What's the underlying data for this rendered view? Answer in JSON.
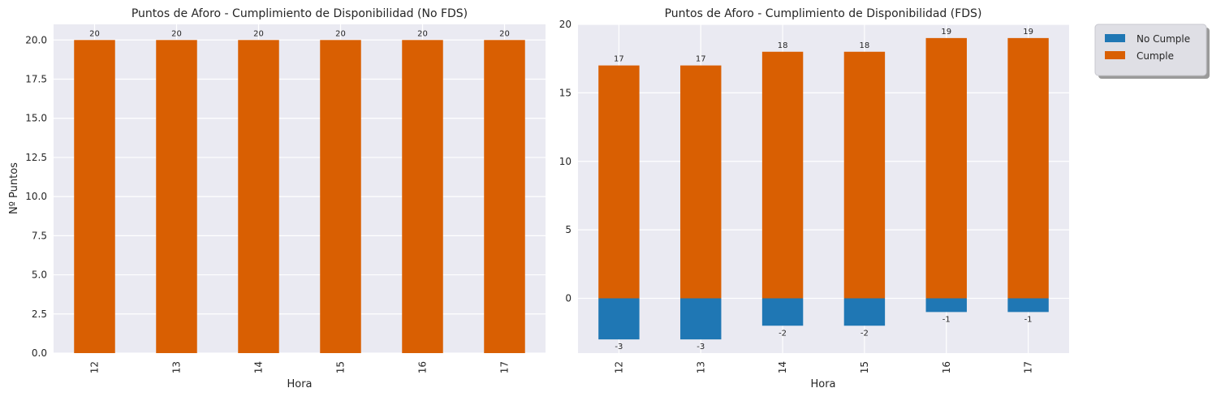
{
  "chart_data": [
    {
      "type": "bar",
      "stacked": false,
      "title": "Puntos de Aforo - Cumplimiento de Disponibilidad (No FDS)",
      "xlabel": "Hora",
      "ylabel": "Nº Puntos",
      "categories": [
        "12",
        "13",
        "14",
        "15",
        "16",
        "17"
      ],
      "series": [
        {
          "name": "Cumple",
          "color": "#d95f02",
          "values": [
            20,
            20,
            20,
            20,
            20,
            20
          ],
          "labels": [
            "20",
            "20",
            "20",
            "20",
            "20",
            "20"
          ]
        }
      ],
      "ylim": [
        0,
        21
      ],
      "yticks": [
        "0.0",
        "2.5",
        "5.0",
        "7.5",
        "10.0",
        "12.5",
        "15.0",
        "17.5",
        "20.0"
      ],
      "ytick_values": [
        0,
        2.5,
        5,
        7.5,
        10,
        12.5,
        15,
        17.5,
        20
      ],
      "grid": true,
      "legend": null
    },
    {
      "type": "bar",
      "stacked": true,
      "title": "Puntos de Aforo - Cumplimiento de Disponibilidad (FDS)",
      "xlabel": "Hora",
      "ylabel": "",
      "categories": [
        "12",
        "13",
        "14",
        "15",
        "16",
        "17"
      ],
      "series": [
        {
          "name": "No Cumple",
          "color": "#1f77b4",
          "values": [
            -3,
            -3,
            -2,
            -2,
            -1,
            -1
          ],
          "labels": [
            "-3",
            "-3",
            "-2",
            "-2",
            "-1",
            "-1"
          ]
        },
        {
          "name": "Cumple",
          "color": "#d95f02",
          "values": [
            17,
            17,
            18,
            18,
            19,
            19
          ],
          "labels": [
            "17",
            "17",
            "18",
            "18",
            "19",
            "19"
          ]
        }
      ],
      "ylim": [
        -4,
        20
      ],
      "yticks": [
        "0",
        "5",
        "10",
        "15",
        "20"
      ],
      "ytick_values": [
        0,
        5,
        10,
        15,
        20
      ],
      "grid": true,
      "legend": "outside-right-top"
    }
  ]
}
